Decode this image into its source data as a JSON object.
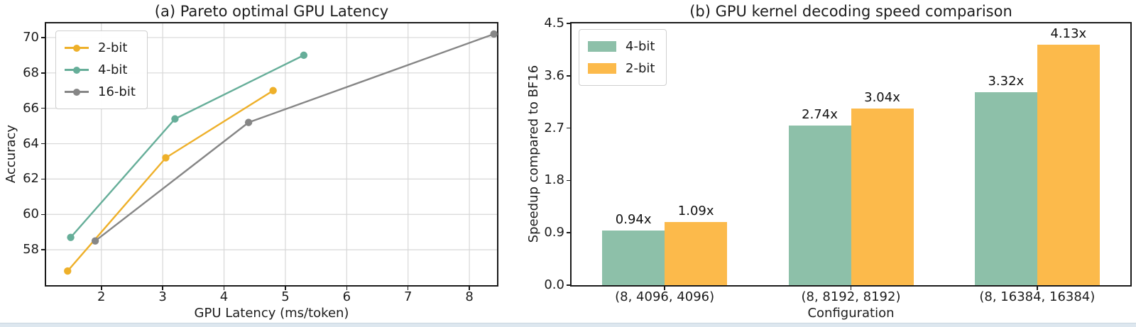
{
  "page": {
    "background": "#ffffff",
    "footer_strip_color": "#dde7ef",
    "footer_strip_border": "#c9d5df",
    "axis_color": "#1a1a1a",
    "grid_color": "#d7d7d7"
  },
  "chart_data": [
    {
      "type": "line",
      "title": "(a) Pareto optimal GPU Latency",
      "xlabel": "GPU Latency (ms/token)",
      "ylabel": "Accuracy",
      "xlim": [
        1.1,
        8.45
      ],
      "ylim": [
        56.0,
        70.8
      ],
      "xticks": [
        2,
        3,
        4,
        5,
        6,
        7,
        8
      ],
      "yticks": [
        58,
        60,
        62,
        64,
        66,
        68,
        70
      ],
      "grid": true,
      "legend_position": "upper-left",
      "series": [
        {
          "name": "2-bit",
          "color": "#eeb02a",
          "points": [
            [
              1.45,
              56.8
            ],
            [
              3.05,
              63.2
            ],
            [
              4.8,
              67.0
            ]
          ]
        },
        {
          "name": "4-bit",
          "color": "#66ae99",
          "points": [
            [
              1.5,
              58.7
            ],
            [
              3.2,
              65.4
            ],
            [
              5.3,
              69.0
            ]
          ]
        },
        {
          "name": "16-bit",
          "color": "#868686",
          "points": [
            [
              1.9,
              58.5
            ],
            [
              4.4,
              65.2
            ],
            [
              8.4,
              70.2
            ]
          ]
        }
      ]
    },
    {
      "type": "bar",
      "title": "(b) GPU kernel decoding speed comparison",
      "xlabel": "Configuration",
      "ylabel": "Speedup compared to BF16",
      "ylim": [
        0,
        4.5
      ],
      "yticks": [
        "0.0",
        "0.9",
        "1.8",
        "2.7",
        "3.6",
        "4.5"
      ],
      "grid": false,
      "legend_position": "upper-left",
      "categories": [
        "(8, 4096, 4096)",
        "(8, 8192, 8192)",
        "(8, 16384, 16384)"
      ],
      "series": [
        {
          "name": "4-bit",
          "color": "#8dc0a9",
          "values": [
            0.94,
            2.74,
            3.32
          ],
          "labels": [
            "0.94x",
            "2.74x",
            "3.32x"
          ]
        },
        {
          "name": "2-bit",
          "color": "#fcba4b",
          "values": [
            1.09,
            3.04,
            4.13
          ],
          "labels": [
            "1.09x",
            "3.04x",
            "4.13x"
          ]
        }
      ]
    }
  ]
}
